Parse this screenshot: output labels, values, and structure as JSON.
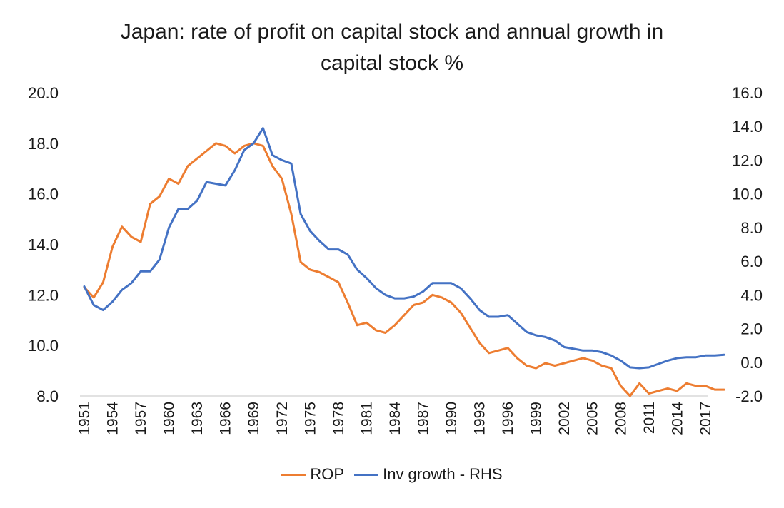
{
  "chart_data": {
    "type": "line",
    "title_lines": [
      "Japan: rate of profit on capital stock and annual growth in",
      "capital stock %"
    ],
    "x": [
      1951,
      1952,
      1953,
      1954,
      1955,
      1956,
      1957,
      1958,
      1959,
      1960,
      1961,
      1962,
      1963,
      1964,
      1965,
      1966,
      1967,
      1968,
      1969,
      1970,
      1971,
      1972,
      1973,
      1974,
      1975,
      1976,
      1977,
      1978,
      1979,
      1980,
      1981,
      1982,
      1983,
      1984,
      1985,
      1986,
      1987,
      1988,
      1989,
      1990,
      1991,
      1992,
      1993,
      1994,
      1995,
      1996,
      1997,
      1998,
      1999,
      2000,
      2001,
      2002,
      2003,
      2004,
      2005,
      2006,
      2007,
      2008,
      2009,
      2010,
      2011,
      2012,
      2013,
      2014,
      2015,
      2016,
      2017,
      2018,
      2019
    ],
    "x_tick_labels": [
      "1951",
      "1954",
      "1957",
      "1960",
      "1963",
      "1966",
      "1969",
      "1972",
      "1975",
      "1978",
      "1981",
      "1984",
      "1987",
      "1990",
      "1993",
      "1996",
      "1999",
      "2002",
      "2005",
      "2008",
      "2011",
      "2014",
      "2017"
    ],
    "y_left": {
      "ylim": [
        8,
        20
      ],
      "tick_labels": [
        "8.0",
        "10.0",
        "12.0",
        "14.0",
        "16.0",
        "18.0",
        "20.0"
      ]
    },
    "y_right": {
      "ylim": [
        -2,
        16
      ],
      "tick_labels": [
        "-2.0",
        "0.0",
        "2.0",
        "4.0",
        "6.0",
        "8.0",
        "10.0",
        "12.0",
        "14.0",
        "16.0"
      ]
    },
    "series": [
      {
        "name": "ROP",
        "axis": "left",
        "color": "#ED7D31",
        "values": [
          12.3,
          11.9,
          12.5,
          13.9,
          14.7,
          14.3,
          14.1,
          15.6,
          15.9,
          16.6,
          16.4,
          17.1,
          17.4,
          17.7,
          18.0,
          17.9,
          17.6,
          17.9,
          18.0,
          17.9,
          17.1,
          16.6,
          15.2,
          13.3,
          13.0,
          12.9,
          12.7,
          12.5,
          11.7,
          10.8,
          10.9,
          10.6,
          10.5,
          10.8,
          11.2,
          11.6,
          11.7,
          12.0,
          11.9,
          11.7,
          11.3,
          10.7,
          10.1,
          9.7,
          9.8,
          9.9,
          9.5,
          9.2,
          9.1,
          9.3,
          9.2,
          9.3,
          9.4,
          9.5,
          9.4,
          9.2,
          9.1,
          8.4,
          8.0,
          8.5,
          8.1,
          8.2,
          8.3,
          8.2,
          8.5,
          8.4,
          8.4,
          8.25,
          8.25
        ]
      },
      {
        "name": "Inv growth - RHS",
        "axis": "right",
        "color": "#4472C4",
        "values": [
          4.5,
          3.4,
          3.1,
          3.6,
          4.3,
          4.7,
          5.4,
          5.4,
          6.1,
          8.0,
          9.1,
          9.1,
          9.6,
          10.7,
          10.6,
          10.5,
          11.4,
          12.6,
          13.0,
          13.9,
          12.3,
          12.0,
          11.8,
          8.8,
          7.8,
          7.2,
          6.7,
          6.7,
          6.4,
          5.5,
          5.0,
          4.4,
          4.0,
          3.8,
          3.8,
          3.9,
          4.2,
          4.7,
          4.7,
          4.7,
          4.4,
          3.8,
          3.1,
          2.7,
          2.7,
          2.8,
          2.3,
          1.8,
          1.6,
          1.5,
          1.3,
          0.9,
          0.8,
          0.7,
          0.7,
          0.6,
          0.4,
          0.1,
          -0.3,
          -0.35,
          -0.3,
          -0.1,
          0.1,
          0.25,
          0.3,
          0.3,
          0.4,
          0.4,
          0.45
        ]
      }
    ],
    "legend_position": "bottom",
    "grid": false
  }
}
